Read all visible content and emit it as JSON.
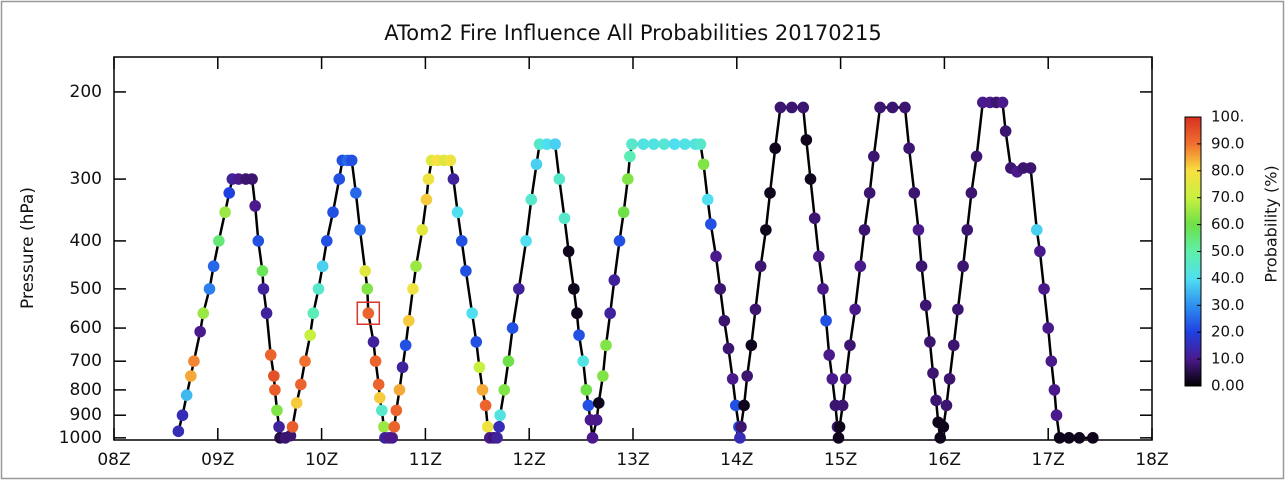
{
  "chart_data": {
    "type": "scatter",
    "title": "ATom2 Fire Influence All Probabilities  20170215",
    "y_label": "Pressure (hPa)",
    "xlim": [
      8,
      18
    ],
    "xticks": [
      {
        "value": 8,
        "label": "08Z"
      },
      {
        "value": 9,
        "label": "09Z"
      },
      {
        "value": 10,
        "label": "10Z"
      },
      {
        "value": 11,
        "label": "11Z"
      },
      {
        "value": 12,
        "label": "12Z"
      },
      {
        "value": 13,
        "label": "13Z"
      },
      {
        "value": 14,
        "label": "14Z"
      },
      {
        "value": 15,
        "label": "15Z"
      },
      {
        "value": 16,
        "label": "16Z"
      },
      {
        "value": 17,
        "label": "17Z"
      },
      {
        "value": 18,
        "label": "18Z"
      }
    ],
    "ylim": [
      1010,
      170
    ],
    "y_log": true,
    "yticks": [
      200,
      300,
      400,
      500,
      600,
      700,
      800,
      900,
      1000
    ],
    "line_color": "#000000",
    "x": [
      8.62,
      8.66,
      8.7,
      8.74,
      8.77,
      8.83,
      8.86,
      8.92,
      8.96,
      9.01,
      9.07,
      9.11,
      9.14,
      9.2,
      9.27,
      9.33,
      9.36,
      9.39,
      9.43,
      9.44,
      9.47,
      9.51,
      9.54,
      9.55,
      9.57,
      9.59,
      9.6,
      9.65,
      9.7,
      9.72,
      9.76,
      9.8,
      9.84,
      9.89,
      9.92,
      9.97,
      10.01,
      10.05,
      10.11,
      10.17,
      10.2,
      10.25,
      10.29,
      10.33,
      10.37,
      10.42,
      10.44,
      10.45,
      10.5,
      10.52,
      10.55,
      10.56,
      10.58,
      10.6,
      10.61,
      10.65,
      10.68,
      10.7,
      10.72,
      10.75,
      10.78,
      10.81,
      10.84,
      10.88,
      10.91,
      10.97,
      11.01,
      11.03,
      11.06,
      11.12,
      11.18,
      11.24,
      11.27,
      11.31,
      11.35,
      11.39,
      11.45,
      11.49,
      11.52,
      11.55,
      11.58,
      11.6,
      11.62,
      11.66,
      11.69,
      11.71,
      11.72,
      11.76,
      11.8,
      11.84,
      11.9,
      11.97,
      12.02,
      12.07,
      12.1,
      12.17,
      12.25,
      12.29,
      12.34,
      12.38,
      12.43,
      12.46,
      12.48,
      12.52,
      12.55,
      12.57,
      12.59,
      12.61,
      12.65,
      12.67,
      12.71,
      12.74,
      12.78,
      12.82,
      12.87,
      12.91,
      12.95,
      12.97,
      12.99,
      13.1,
      13.2,
      13.3,
      13.4,
      13.5,
      13.6,
      13.65,
      13.68,
      13.72,
      13.75,
      13.8,
      13.84,
      13.88,
      13.92,
      13.96,
      13.99,
      14.02,
      14.03,
      14.04,
      14.07,
      14.1,
      14.14,
      14.18,
      14.23,
      14.28,
      14.32,
      14.37,
      14.42,
      14.53,
      14.64,
      14.67,
      14.71,
      14.75,
      14.79,
      14.83,
      14.86,
      14.89,
      14.92,
      14.95,
      14.97,
      14.98,
      14.99,
      15.02,
      15.05,
      15.09,
      15.14,
      15.19,
      15.23,
      15.28,
      15.32,
      15.38,
      15.5,
      15.62,
      15.66,
      15.71,
      15.75,
      15.78,
      15.82,
      15.86,
      15.89,
      15.92,
      15.94,
      15.96,
      15.99,
      16.02,
      16.05,
      16.09,
      16.13,
      16.18,
      16.22,
      16.26,
      16.31,
      16.37,
      16.44,
      16.5,
      16.56,
      16.59,
      16.64,
      16.7,
      16.76,
      16.83,
      16.89,
      16.92,
      16.96,
      17.0,
      17.03,
      17.06,
      17.08,
      17.11,
      17.2,
      17.3,
      17.43
    ],
    "values": [
      970,
      900,
      820,
      750,
      700,
      610,
      560,
      500,
      450,
      400,
      350,
      320,
      300,
      300,
      300,
      300,
      340,
      400,
      460,
      500,
      560,
      680,
      750,
      800,
      880,
      950,
      1000,
      1000,
      990,
      950,
      850,
      780,
      700,
      620,
      560,
      500,
      450,
      400,
      350,
      300,
      275,
      275,
      275,
      320,
      380,
      460,
      500,
      560,
      640,
      700,
      780,
      830,
      880,
      950,
      1000,
      1000,
      1000,
      950,
      880,
      800,
      720,
      650,
      580,
      500,
      450,
      380,
      330,
      300,
      275,
      275,
      275,
      275,
      300,
      350,
      400,
      460,
      560,
      640,
      720,
      800,
      860,
      950,
      1000,
      1000,
      1000,
      950,
      900,
      800,
      700,
      600,
      500,
      400,
      330,
      280,
      255,
      255,
      255,
      300,
      360,
      420,
      500,
      560,
      620,
      700,
      800,
      860,
      920,
      1000,
      920,
      850,
      750,
      650,
      560,
      480,
      400,
      350,
      300,
      270,
      255,
      255,
      255,
      255,
      255,
      255,
      255,
      255,
      280,
      330,
      370,
      430,
      500,
      580,
      660,
      760,
      860,
      950,
      1000,
      950,
      860,
      750,
      650,
      550,
      450,
      380,
      320,
      260,
      215,
      215,
      215,
      250,
      300,
      360,
      430,
      500,
      580,
      680,
      760,
      860,
      950,
      1000,
      950,
      860,
      760,
      650,
      550,
      450,
      380,
      320,
      270,
      215,
      215,
      215,
      260,
      320,
      380,
      450,
      540,
      640,
      740,
      840,
      930,
      1000,
      950,
      860,
      760,
      650,
      550,
      450,
      380,
      320,
      270,
      210,
      210,
      210,
      210,
      240,
      285,
      290,
      285,
      285,
      380,
      420,
      500,
      600,
      700,
      800,
      900,
      1000,
      1000,
      1000,
      1000
    ],
    "probability": [
      15,
      15,
      35,
      85,
      88,
      10,
      65,
      28,
      25,
      55,
      65,
      20,
      12,
      10,
      8,
      8,
      10,
      22,
      58,
      12,
      12,
      92,
      95,
      93,
      62,
      12,
      5,
      8,
      8,
      93,
      82,
      92,
      90,
      70,
      48,
      45,
      38,
      22,
      22,
      22,
      22,
      25,
      22,
      25,
      25,
      75,
      62,
      92,
      12,
      92,
      92,
      82,
      45,
      65,
      12,
      10,
      10,
      92,
      92,
      85,
      12,
      22,
      82,
      78,
      65,
      75,
      82,
      78,
      75,
      80,
      75,
      78,
      12,
      40,
      22,
      22,
      40,
      22,
      70,
      85,
      92,
      78,
      10,
      8,
      12,
      15,
      42,
      62,
      60,
      22,
      12,
      40,
      45,
      38,
      45,
      40,
      38,
      45,
      45,
      2,
      2,
      2,
      22,
      42,
      60,
      22,
      10,
      10,
      10,
      2,
      62,
      62,
      12,
      12,
      22,
      60,
      62,
      48,
      45,
      42,
      42,
      44,
      40,
      42,
      42,
      45,
      62,
      40,
      22,
      10,
      8,
      8,
      8,
      10,
      22,
      22,
      15,
      8,
      2,
      8,
      2,
      8,
      8,
      2,
      2,
      2,
      8,
      8,
      8,
      2,
      2,
      8,
      10,
      10,
      22,
      10,
      10,
      8,
      8,
      2,
      2,
      8,
      10,
      8,
      10,
      10,
      8,
      8,
      8,
      8,
      8,
      8,
      8,
      8,
      10,
      8,
      8,
      8,
      8,
      8,
      2,
      2,
      2,
      8,
      8,
      8,
      8,
      8,
      8,
      8,
      8,
      10,
      10,
      8,
      10,
      8,
      8,
      10,
      8,
      8,
      38,
      10,
      10,
      10,
      10,
      10,
      10,
      2,
      2,
      2,
      2
    ],
    "highlight": {
      "x": 10.45,
      "y": 560,
      "color": "#d9352a"
    },
    "colorbar": {
      "label": "Probability (%)",
      "lim": [
        0,
        100
      ],
      "ticks": [
        {
          "value": 0,
          "label": "0.00"
        },
        {
          "value": 10,
          "label": "10.0"
        },
        {
          "value": 20,
          "label": "20.0"
        },
        {
          "value": 30,
          "label": "30.0"
        },
        {
          "value": 40,
          "label": "40.0"
        },
        {
          "value": 50,
          "label": "50.0"
        },
        {
          "value": 60,
          "label": "60.0"
        },
        {
          "value": 70,
          "label": "70.0"
        },
        {
          "value": 80,
          "label": "80.0"
        },
        {
          "value": 90,
          "label": "90.0"
        },
        {
          "value": 100,
          "label": "100."
        }
      ],
      "colors": [
        "#000000",
        "#4a1a8c",
        "#1f40e0",
        "#2e90f0",
        "#50dff0",
        "#5ef0a8",
        "#6ee048",
        "#c8f040",
        "#f8e040",
        "#f07030",
        "#d83020"
      ]
    }
  }
}
